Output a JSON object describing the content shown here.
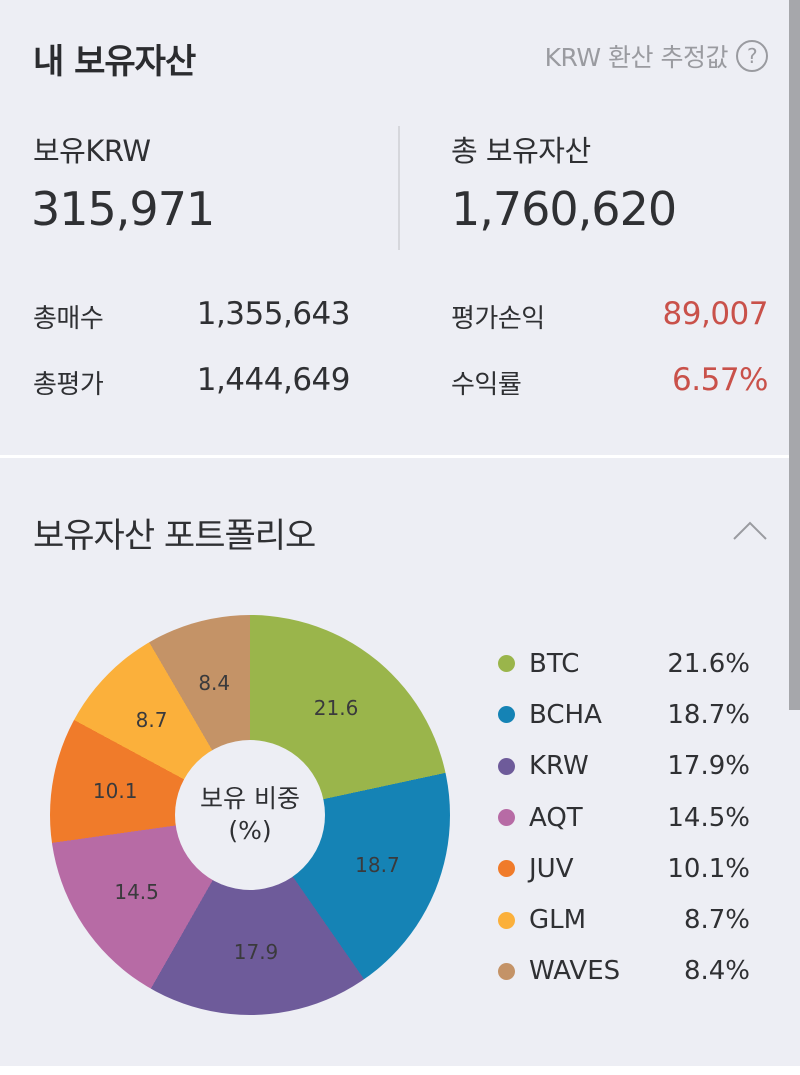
{
  "header": {
    "title": "내 보유자산",
    "krw_note": "KRW 환산 추정값",
    "help_icon": "question-circle-icon"
  },
  "summary": {
    "krw_label": "보유KRW",
    "krw_value": "315,971",
    "total_label": "총 보유자산",
    "total_value": "1,760,620"
  },
  "details": {
    "total_buy_label": "총매수",
    "total_buy_value": "1,355,643",
    "total_eval_label": "총평가",
    "total_eval_value": "1,444,649",
    "pnl_label": "평가손익",
    "pnl_value": "89,007",
    "return_label": "수익률",
    "return_value": "6.57%"
  },
  "portfolio": {
    "title": "보유자산 포트폴리오",
    "collapse_icon": "chevron-up-icon",
    "center_line1": "보유 비중",
    "center_line2": "(%)"
  },
  "colors": {
    "profit_red": "#c9514a",
    "background": "#edeef4"
  },
  "chart_data": {
    "type": "pie",
    "title": "보유 비중 (%)",
    "donut": true,
    "categories": [
      "BTC",
      "BCHA",
      "KRW",
      "AQT",
      "JUV",
      "GLM",
      "WAVES"
    ],
    "values": [
      21.6,
      18.7,
      17.9,
      14.5,
      10.1,
      8.7,
      8.4
    ],
    "slice_labels": [
      "21.6",
      "18.7",
      "17.9",
      "14.5",
      "10.1",
      "8.7",
      "8.4"
    ],
    "legend": [
      {
        "name": "BTC",
        "pct": "21.6%",
        "color": "#9ab54b"
      },
      {
        "name": "BCHA",
        "pct": "18.7%",
        "color": "#1583b5"
      },
      {
        "name": "KRW",
        "pct": "17.9%",
        "color": "#6e5b9a"
      },
      {
        "name": "AQT",
        "pct": "14.5%",
        "color": "#b76ba5"
      },
      {
        "name": "JUV",
        "pct": "10.1%",
        "color": "#f07b2a"
      },
      {
        "name": "GLM",
        "pct": "8.7%",
        "color": "#fbb03b"
      },
      {
        "name": "WAVES",
        "pct": "8.4%",
        "color": "#c49367"
      }
    ],
    "legend_position": "right",
    "start_angle": "12 o'clock, clockwise"
  }
}
